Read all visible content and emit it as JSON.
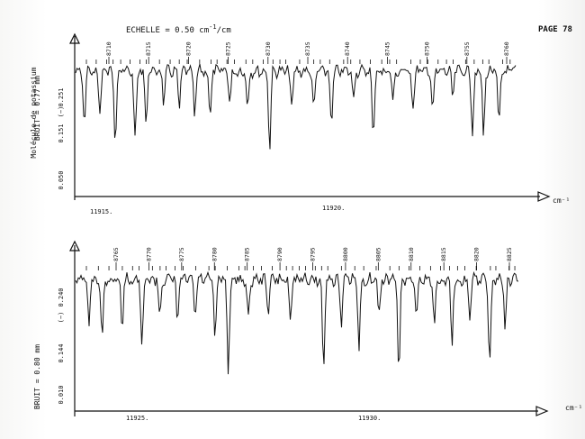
{
  "header": {
    "scale_label": "ECHELLE = 0.50 cm",
    "scale_sup": "-1",
    "scale_suffix": "/cm",
    "page_label": "PAGE 78"
  },
  "sidebar": {
    "molecule": "Molécule de potassium",
    "units": "(−)"
  },
  "chart_data": [
    {
      "type": "line",
      "noise_label": "BRUIT = 0.77 mm",
      "x_unit": "cm⁻¹",
      "yticks": [
        "0.251",
        "0.151",
        "0.050"
      ],
      "wavenumber_ticks": [
        "11915.",
        "11920."
      ],
      "line_numbers": [
        "8710",
        "8715",
        "8720",
        "8725",
        "8730",
        "8735",
        "8740",
        "8745",
        "8750",
        "8755",
        "8760"
      ],
      "absorption_dips": [
        {
          "pos": 0.02,
          "value": 0.16
        },
        {
          "pos": 0.055,
          "value": 0.19
        },
        {
          "pos": 0.09,
          "value": 0.14
        },
        {
          "pos": 0.135,
          "value": 0.13
        },
        {
          "pos": 0.16,
          "value": 0.17
        },
        {
          "pos": 0.2,
          "value": 0.21
        },
        {
          "pos": 0.235,
          "value": 0.2
        },
        {
          "pos": 0.27,
          "value": 0.18
        },
        {
          "pos": 0.305,
          "value": 0.18
        },
        {
          "pos": 0.35,
          "value": 0.21
        },
        {
          "pos": 0.39,
          "value": 0.2
        },
        {
          "pos": 0.44,
          "value": 0.12
        },
        {
          "pos": 0.49,
          "value": 0.2
        },
        {
          "pos": 0.54,
          "value": 0.19
        },
        {
          "pos": 0.58,
          "value": 0.16
        },
        {
          "pos": 0.63,
          "value": 0.22
        },
        {
          "pos": 0.675,
          "value": 0.14
        },
        {
          "pos": 0.72,
          "value": 0.21
        },
        {
          "pos": 0.765,
          "value": 0.2
        },
        {
          "pos": 0.81,
          "value": 0.19
        },
        {
          "pos": 0.855,
          "value": 0.22
        },
        {
          "pos": 0.9,
          "value": 0.15
        },
        {
          "pos": 0.925,
          "value": 0.14
        },
        {
          "pos": 0.96,
          "value": 0.16
        }
      ]
    },
    {
      "type": "line",
      "noise_label": "BRUIT = 0.80 mm",
      "x_unit": "cm⁻¹",
      "yticks": [
        "0.240",
        "0.144",
        "0.010"
      ],
      "wavenumber_ticks": [
        "11925.",
        "11930."
      ],
      "line_numbers": [
        "8765",
        "8770",
        "8775",
        "8780",
        "8785",
        "8790",
        "8795",
        "8800",
        "8805",
        "8810",
        "8815",
        "8820",
        "8825"
      ],
      "absorption_dips": [
        {
          "pos": 0.03,
          "value": 0.16
        },
        {
          "pos": 0.06,
          "value": 0.13
        },
        {
          "pos": 0.105,
          "value": 0.16
        },
        {
          "pos": 0.15,
          "value": 0.11
        },
        {
          "pos": 0.19,
          "value": 0.18
        },
        {
          "pos": 0.23,
          "value": 0.17
        },
        {
          "pos": 0.27,
          "value": 0.18
        },
        {
          "pos": 0.315,
          "value": 0.13
        },
        {
          "pos": 0.345,
          "value": 0.07
        },
        {
          "pos": 0.39,
          "value": 0.17
        },
        {
          "pos": 0.435,
          "value": 0.19
        },
        {
          "pos": 0.485,
          "value": 0.18
        },
        {
          "pos": 0.56,
          "value": 0.07
        },
        {
          "pos": 0.6,
          "value": 0.16
        },
        {
          "pos": 0.64,
          "value": 0.11
        },
        {
          "pos": 0.685,
          "value": 0.18
        },
        {
          "pos": 0.73,
          "value": 0.06
        },
        {
          "pos": 0.77,
          "value": 0.18
        },
        {
          "pos": 0.81,
          "value": 0.16
        },
        {
          "pos": 0.85,
          "value": 0.12
        },
        {
          "pos": 0.89,
          "value": 0.17
        },
        {
          "pos": 0.935,
          "value": 0.07
        },
        {
          "pos": 0.97,
          "value": 0.16
        }
      ]
    }
  ]
}
